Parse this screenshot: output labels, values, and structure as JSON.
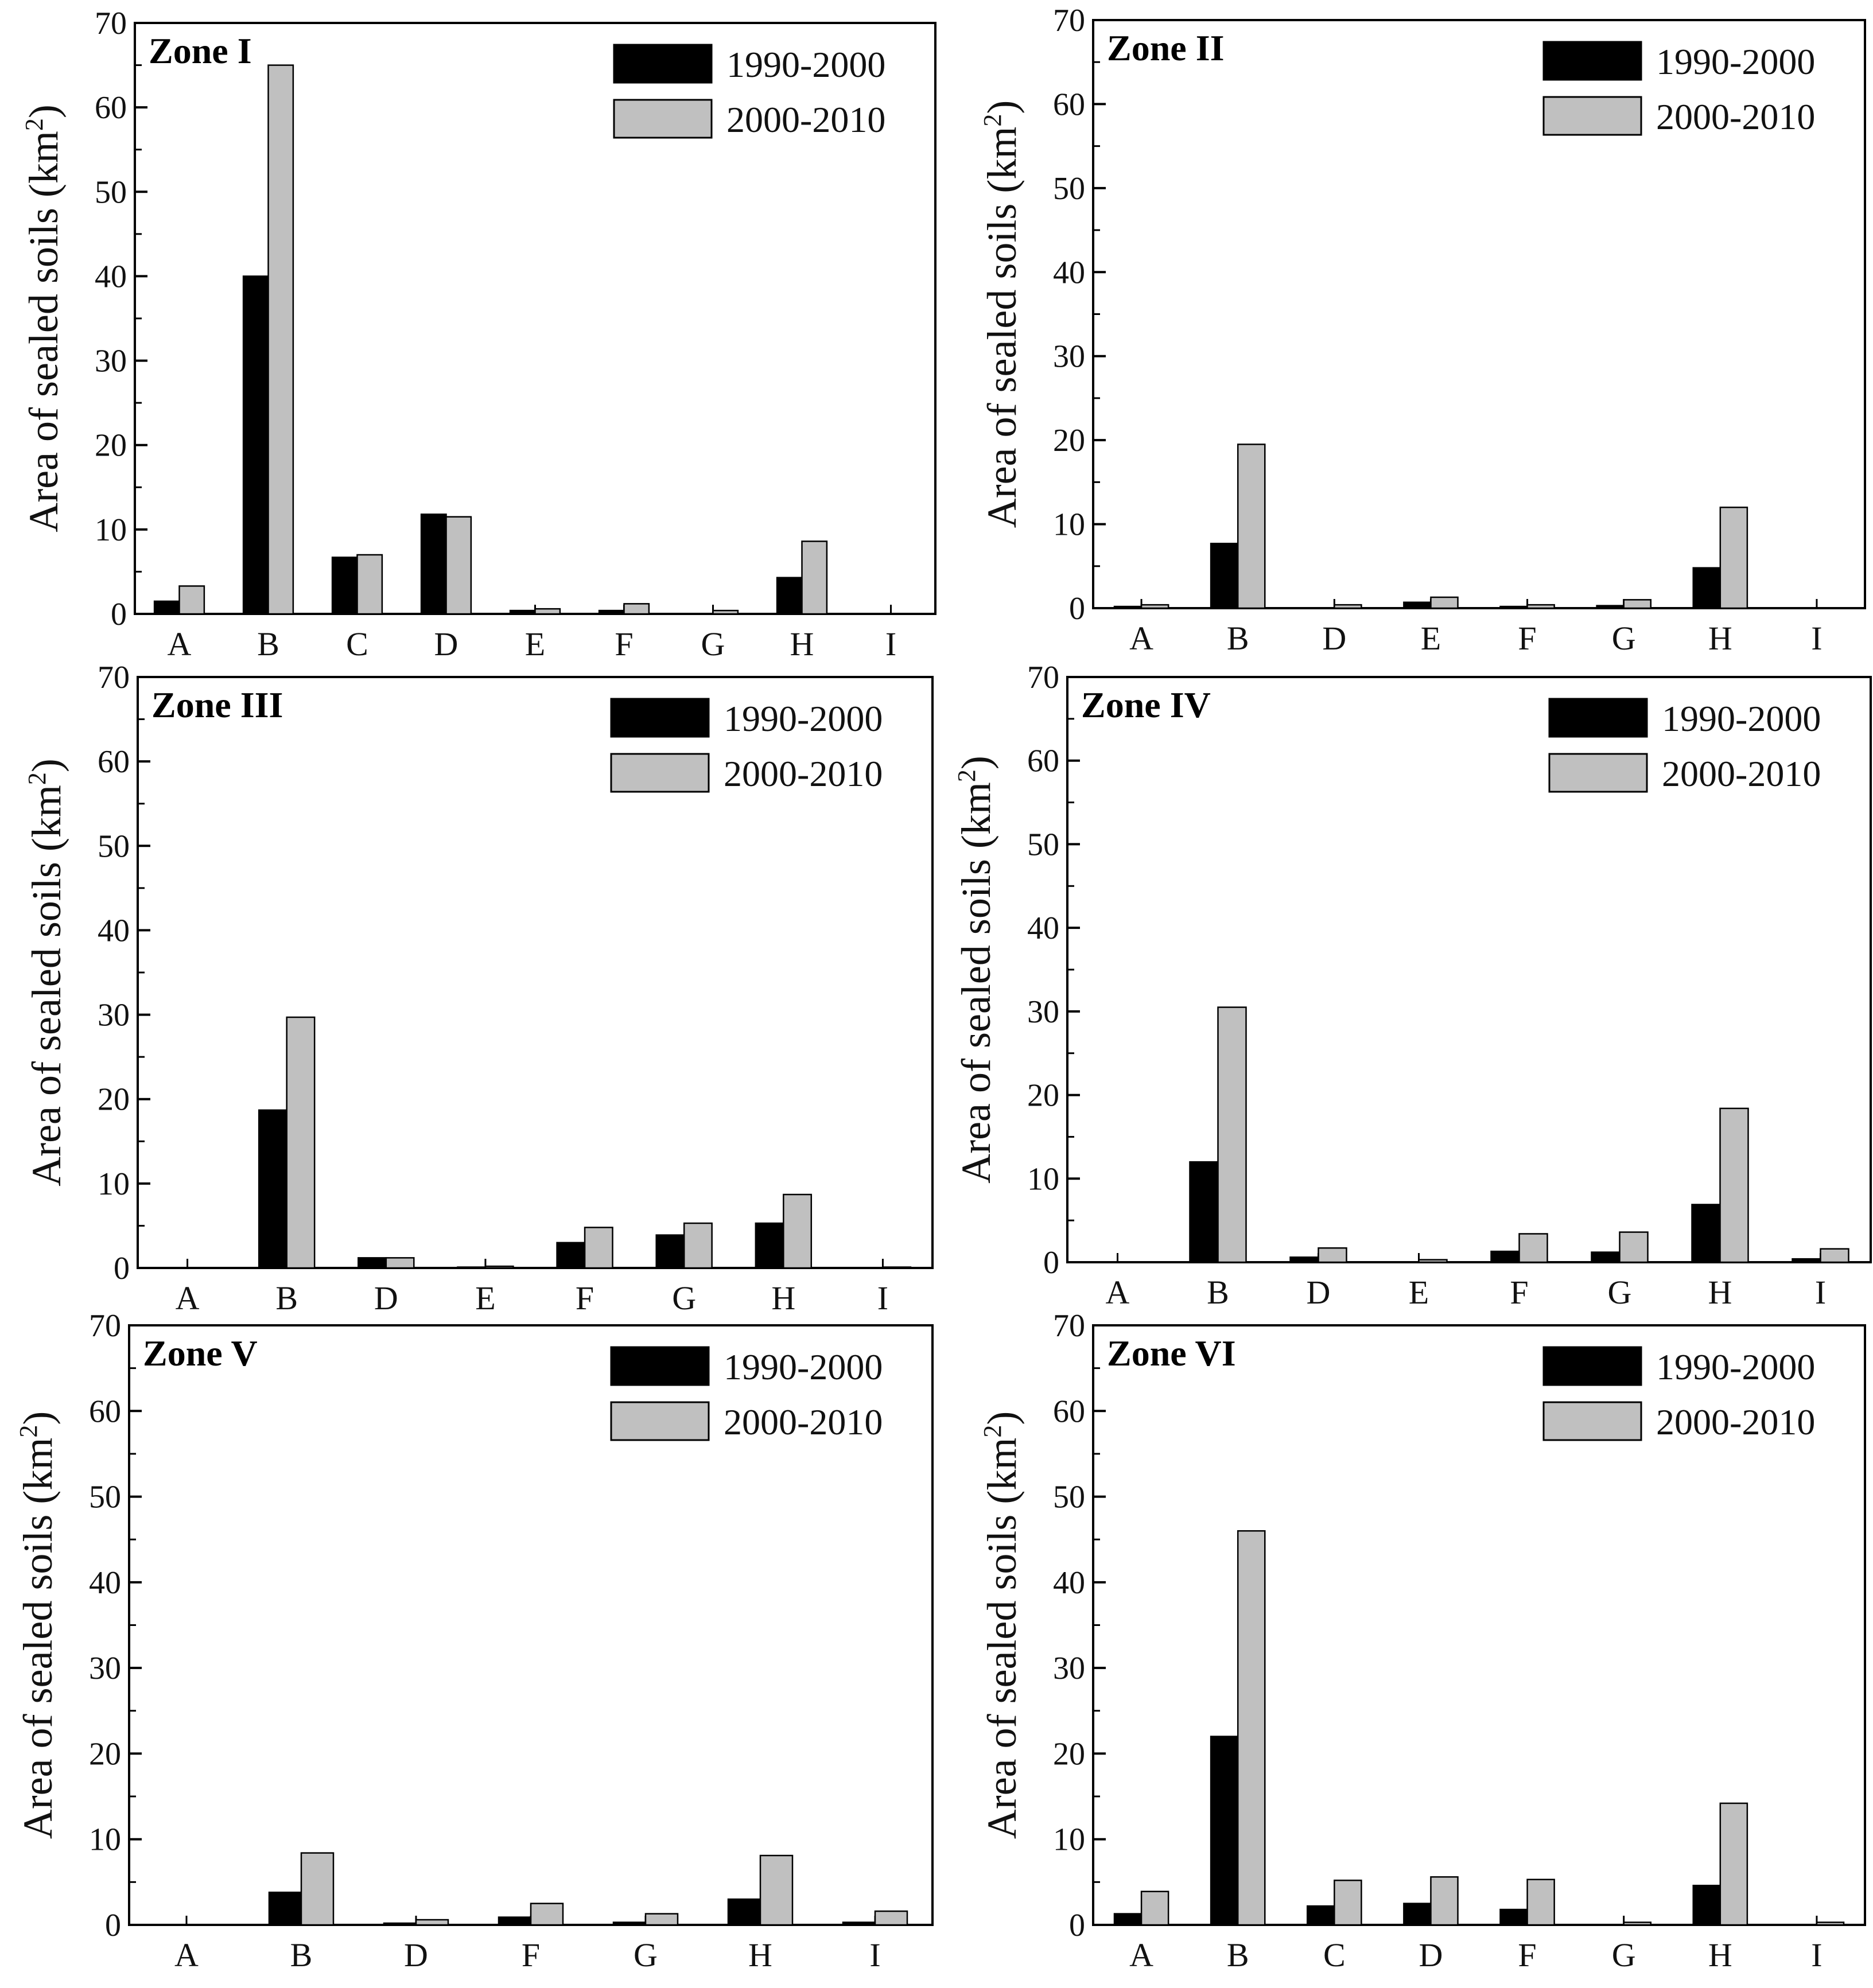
{
  "figure": {
    "ylabel_main": "Area of sealed soils (km",
    "ylabel_sup": "2",
    "ylabel_close": ")",
    "colors": {
      "series1": "#000000",
      "series2": "#c0c0c0",
      "axis": "#000000"
    }
  },
  "chart_data": [
    {
      "type": "bar",
      "title": "Zone I",
      "ylim": [
        0,
        70
      ],
      "yticks": [
        0,
        10,
        20,
        30,
        40,
        50,
        60,
        70
      ],
      "categories": [
        "A",
        "B",
        "C",
        "D",
        "E",
        "F",
        "G",
        "H",
        "I"
      ],
      "series": [
        {
          "name": "1990-2000",
          "values": [
            1.5,
            40,
            6.7,
            11.8,
            0.4,
            0.4,
            0,
            4.3,
            0
          ]
        },
        {
          "name": "2000-2010",
          "values": [
            3.3,
            65,
            7.0,
            11.5,
            0.6,
            1.2,
            0.4,
            8.6,
            0
          ]
        }
      ],
      "xlabel": "",
      "legend": "top-right"
    },
    {
      "type": "bar",
      "title": "Zone II",
      "ylim": [
        0,
        70
      ],
      "yticks": [
        0,
        10,
        20,
        30,
        40,
        50,
        60,
        70
      ],
      "categories": [
        "A",
        "B",
        "D",
        "E",
        "F",
        "G",
        "H",
        "I"
      ],
      "series": [
        {
          "name": "1990-2000",
          "values": [
            0.2,
            7.7,
            0,
            0.7,
            0.2,
            0.3,
            4.8,
            0
          ]
        },
        {
          "name": "2000-2010",
          "values": [
            0.4,
            19.5,
            0.4,
            1.3,
            0.4,
            1.0,
            12.0,
            0
          ]
        }
      ],
      "xlabel": "",
      "legend": "top-right"
    },
    {
      "type": "bar",
      "title": "Zone III",
      "ylim": [
        0,
        70
      ],
      "yticks": [
        0,
        10,
        20,
        30,
        40,
        50,
        60,
        70
      ],
      "categories": [
        "A",
        "B",
        "D",
        "E",
        "F",
        "G",
        "H",
        "I"
      ],
      "series": [
        {
          "name": "1990-2000",
          "values": [
            0,
            18.7,
            1.2,
            0.1,
            3.0,
            3.9,
            5.3,
            0
          ]
        },
        {
          "name": "2000-2010",
          "values": [
            0,
            29.7,
            1.2,
            0.2,
            4.8,
            5.3,
            8.7,
            0.1
          ]
        }
      ],
      "xlabel": "",
      "legend": "top-right"
    },
    {
      "type": "bar",
      "title": "Zone IV",
      "ylim": [
        0,
        70
      ],
      "yticks": [
        0,
        10,
        20,
        30,
        40,
        50,
        60,
        70
      ],
      "categories": [
        "A",
        "B",
        "D",
        "E",
        "F",
        "G",
        "H",
        "I"
      ],
      "series": [
        {
          "name": "1990-2000",
          "values": [
            0,
            12.0,
            0.6,
            0,
            1.3,
            1.2,
            6.9,
            0.4
          ]
        },
        {
          "name": "2000-2010",
          "values": [
            0,
            30.5,
            1.7,
            0.3,
            3.4,
            3.6,
            18.4,
            1.6
          ]
        }
      ],
      "xlabel": "",
      "legend": "top-right"
    },
    {
      "type": "bar",
      "title": "Zone V",
      "ylim": [
        0,
        70
      ],
      "yticks": [
        0,
        10,
        20,
        30,
        40,
        50,
        60,
        70
      ],
      "categories": [
        "A",
        "B",
        "D",
        "F",
        "G",
        "H",
        "I"
      ],
      "series": [
        {
          "name": "1990-2000",
          "values": [
            0,
            3.8,
            0.2,
            0.9,
            0.3,
            3.0,
            0.3
          ]
        },
        {
          "name": "2000-2010",
          "values": [
            0,
            8.4,
            0.6,
            2.5,
            1.3,
            8.1,
            1.6
          ]
        }
      ],
      "xlabel": "",
      "legend": "top-right"
    },
    {
      "type": "bar",
      "title": "Zone VI",
      "ylim": [
        0,
        70
      ],
      "yticks": [
        0,
        10,
        20,
        30,
        40,
        50,
        60,
        70
      ],
      "categories": [
        "A",
        "B",
        "C",
        "D",
        "F",
        "G",
        "H",
        "I"
      ],
      "series": [
        {
          "name": "1990-2000",
          "values": [
            1.3,
            22.0,
            2.2,
            2.5,
            1.8,
            0,
            4.6,
            0
          ]
        },
        {
          "name": "2000-2010",
          "values": [
            3.9,
            46.0,
            5.2,
            5.6,
            5.3,
            0.3,
            14.2,
            0.3
          ]
        }
      ],
      "xlabel": "",
      "legend": "top-right"
    }
  ]
}
